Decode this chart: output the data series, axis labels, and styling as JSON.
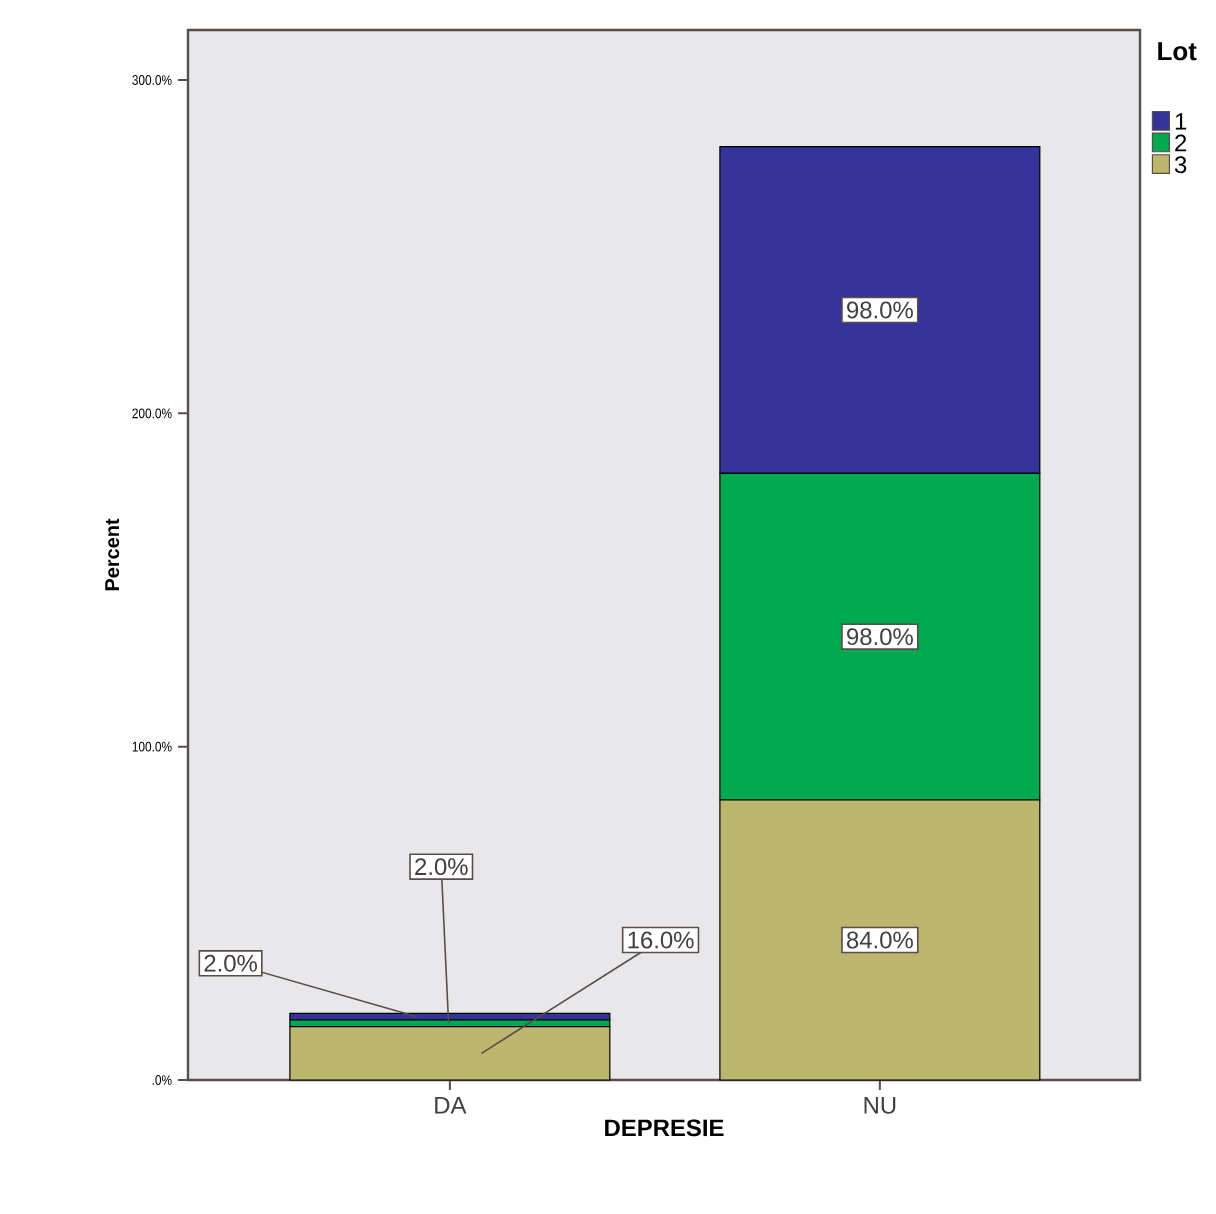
{
  "chart_data": {
    "type": "bar",
    "stacked": true,
    "xlabel": "DEPRESIE",
    "ylabel": "Percent",
    "legend_title": "Lot",
    "legend": "top right",
    "categories": [
      "DA",
      "NU"
    ],
    "ylim": [
      0,
      315
    ],
    "yticks": [
      {
        "value": 0,
        "label": ".0%"
      },
      {
        "value": 100,
        "label": "100.0%"
      },
      {
        "value": 200,
        "label": "200.0%"
      },
      {
        "value": 300,
        "label": "300.0%"
      }
    ],
    "series": [
      {
        "name": "3",
        "color": "#bdb66e",
        "values": [
          16,
          84
        ],
        "value_labels": [
          "16.0%",
          "84.0%"
        ]
      },
      {
        "name": "2",
        "color": "#00a94f",
        "values": [
          2,
          98
        ],
        "value_labels": [
          "2.0%",
          "98.0%"
        ]
      },
      {
        "name": "1",
        "color": "#333399",
        "values": [
          2,
          98
        ],
        "value_labels": [
          "2.0%",
          "98.0%"
        ]
      }
    ]
  }
}
